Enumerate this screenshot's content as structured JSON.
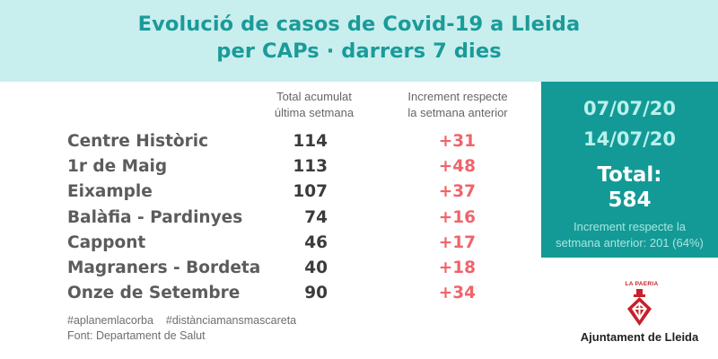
{
  "header": {
    "title_line1": "Evolució de casos de Covid-19 a Lleida",
    "title_line2": "per CAPs · darrers 7 dies"
  },
  "columns": {
    "total_line1": "Total acumulat",
    "total_line2": "última setmana",
    "increment_line1": "Increment respecte",
    "increment_line2": "la setmana anterior"
  },
  "rows": [
    {
      "name": "Centre Històric",
      "total": "114",
      "increment": "+31"
    },
    {
      "name": "1r de Maig",
      "total": "113",
      "increment": "+48"
    },
    {
      "name": "Eixample",
      "total": "107",
      "increment": "+37"
    },
    {
      "name": "Balàfia - Pardinyes",
      "total": "74",
      "increment": "+16"
    },
    {
      "name": "Cappont",
      "total": "46",
      "increment": "+17"
    },
    {
      "name": "Magraners - Bordeta",
      "total": "40",
      "increment": "+18"
    },
    {
      "name": "Onze de Setembre",
      "total": "90",
      "increment": "+34"
    }
  ],
  "summary": {
    "date_from": "07/07/20",
    "date_to": "14/07/20",
    "total_label": "Total:",
    "total_value": "584",
    "note_line1": "Increment respecte la",
    "note_line2": "setmana anterior: 201 (64%)"
  },
  "footer": {
    "hashtag1": "#aplanemlacorba",
    "hashtag2": "#distànciamansmascareta",
    "source": "Font: Departament de Salut"
  },
  "logo": {
    "small_text": "LA PAERIA",
    "org_name": "Ajuntament de Lleida",
    "icon": "la-paeria-emblem-icon"
  },
  "colors": {
    "header_bg": "#c9eeee",
    "title": "#1a9b99",
    "panel_bg": "#149a96",
    "increment": "#f0646b",
    "logo_red": "#c8202a"
  }
}
